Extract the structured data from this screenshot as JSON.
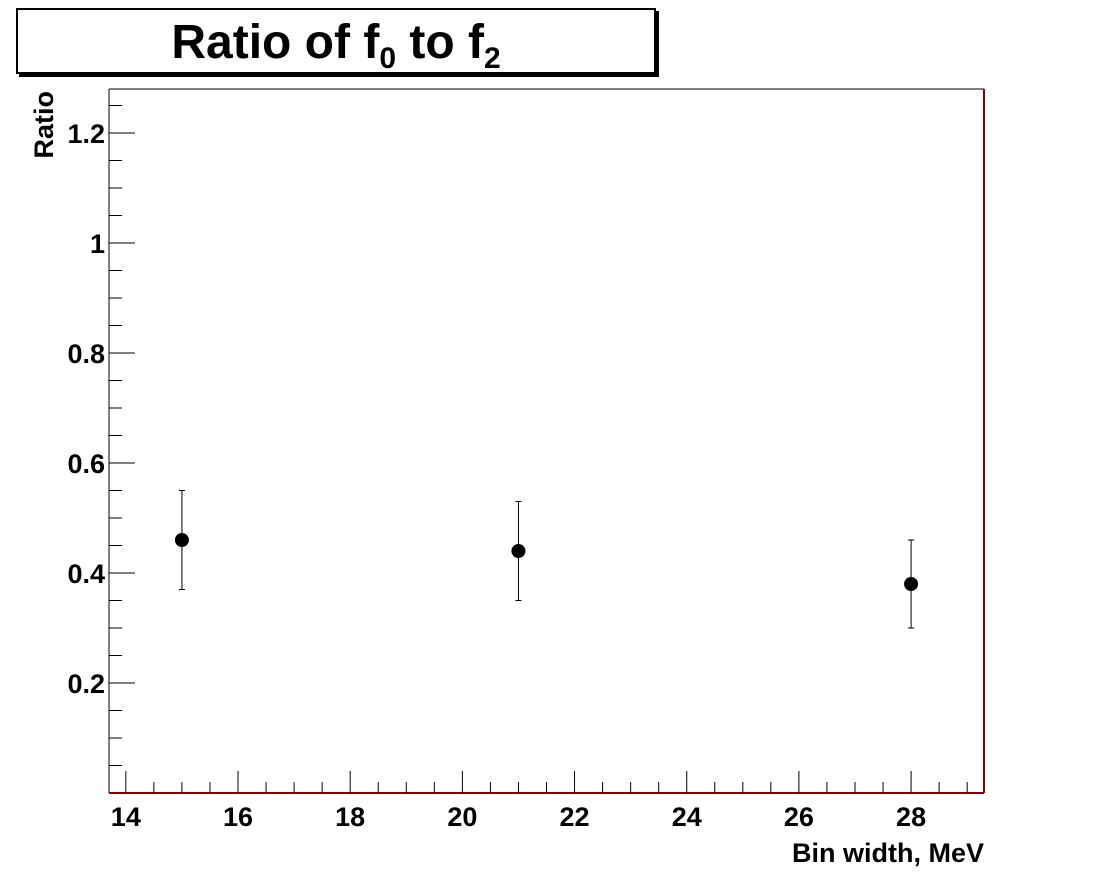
{
  "chart_data": {
    "type": "scatter",
    "title": {
      "prefix": "Ratio of f",
      "sub1": "0",
      "middle": " to f",
      "sub2": "2"
    },
    "xlabel": "Bin width, MeV",
    "ylabel": "Ratio",
    "xlim": [
      13.7,
      29.3
    ],
    "ylim": [
      0.0,
      1.28
    ],
    "xticks": [
      14,
      16,
      18,
      20,
      22,
      24,
      26,
      28
    ],
    "xtick_labels": [
      "14",
      "16",
      "18",
      "20",
      "22",
      "24",
      "26",
      "28"
    ],
    "yticks": [
      0.2,
      0.4,
      0.6,
      0.8,
      1.0,
      1.2
    ],
    "ytick_labels": [
      "0.2",
      "0.4",
      "0.6",
      "0.8",
      "1",
      "1.2"
    ],
    "grid": false,
    "series": [
      {
        "x": [
          15,
          21,
          28
        ],
        "y": [
          0.46,
          0.44,
          0.38
        ],
        "err_low": [
          0.09,
          0.09,
          0.08
        ],
        "err_high": [
          0.09,
          0.09,
          0.08
        ]
      }
    ],
    "colors": {
      "frame_right": "#8b0000",
      "frame_bottom": "#8b0000",
      "marker": "#000000"
    }
  }
}
